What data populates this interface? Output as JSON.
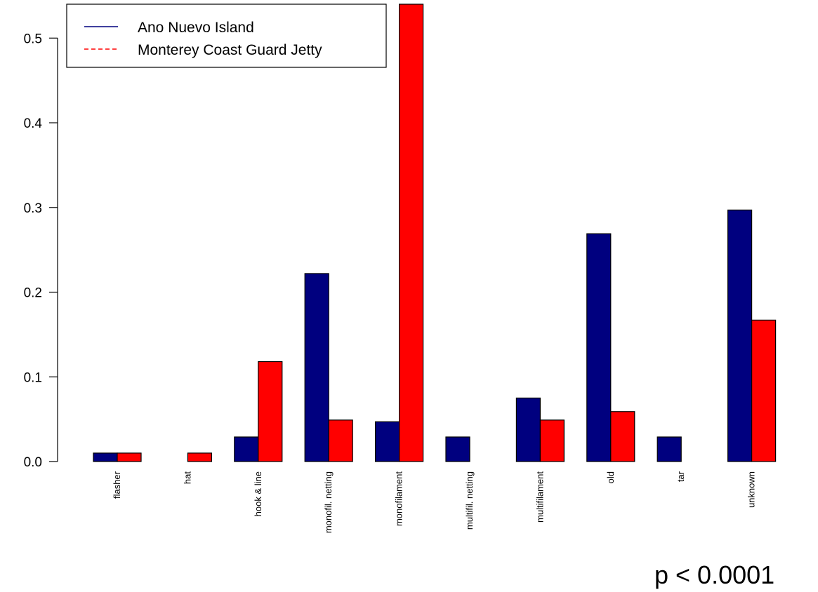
{
  "chart_data": {
    "type": "bar",
    "categories": [
      "flasher",
      "hat",
      "hook & line",
      "monofil. netting",
      "monofilament",
      "multifil. netting",
      "multifilament",
      "old",
      "tar",
      "unknown"
    ],
    "series": [
      {
        "name": "Ano Nuevo Island",
        "color": "#00007f",
        "line_style": "solid",
        "values": [
          0.01,
          0.0,
          0.029,
          0.222,
          0.047,
          0.029,
          0.075,
          0.269,
          0.029,
          0.297
        ]
      },
      {
        "name": "Monterey Coast Guard Jetty",
        "color": "#ff0000",
        "line_style": "dashed",
        "values": [
          0.01,
          0.01,
          0.118,
          0.049,
          0.54,
          0.0,
          0.049,
          0.059,
          0.0,
          0.167
        ]
      }
    ],
    "yticks": [
      "0.0",
      "0.1",
      "0.2",
      "0.3",
      "0.4",
      "0.5"
    ],
    "ylim": [
      0,
      0.54
    ],
    "legend_position": "top-left",
    "annotation": "p < 0.0001",
    "title": "",
    "xlabel": "",
    "ylabel": ""
  }
}
